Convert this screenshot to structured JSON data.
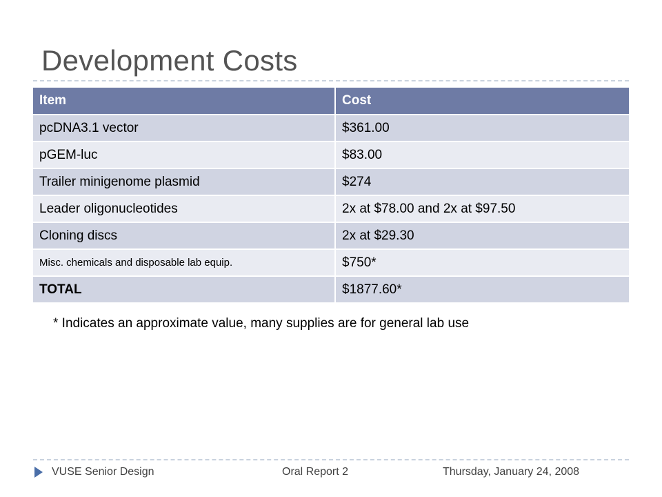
{
  "slide": {
    "title": "Development Costs"
  },
  "table": {
    "headers": [
      "Item",
      "Cost"
    ],
    "rows": [
      {
        "item": "pcDNA3.1 vector",
        "cost": "$361.00"
      },
      {
        "item": "pGEM-luc",
        "cost": "$83.00"
      },
      {
        "item": "Trailer minigenome plasmid",
        "cost": "$274"
      },
      {
        "item": "Leader oligonucleotides",
        "cost": "2x at $78.00 and 2x at $97.50"
      },
      {
        "item": "Cloning discs",
        "cost": "2x at $29.30"
      },
      {
        "item": "Misc. chemicals and disposable lab equip.",
        "cost": "$750*"
      },
      {
        "item": "TOTAL",
        "cost": "$1877.60*"
      }
    ]
  },
  "footnote": "* Indicates an approximate value, many supplies are for general lab use",
  "footer": {
    "left": "VUSE Senior Design",
    "center": "Oral Report 2",
    "right": "Thursday, January 24, 2008"
  },
  "colors": {
    "header_bg": "#6e7ba5",
    "row_dark": "#d0d4e2",
    "row_light": "#e9ebf2",
    "bullet_arrow": "#4a6ea8"
  }
}
